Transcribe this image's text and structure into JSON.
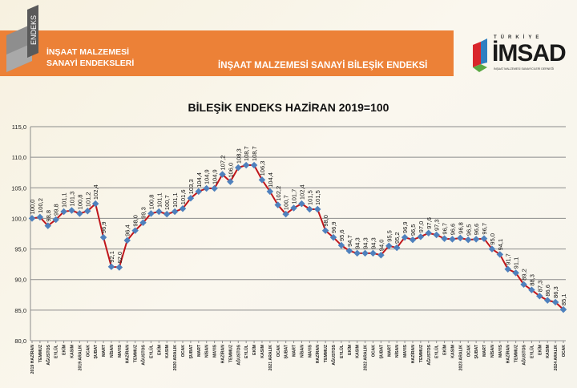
{
  "header": {
    "logo_text": "ENDEKS",
    "subtitle_line1": "İNŞAAT MALZEMESİ",
    "subtitle_line2": "SANAYİ ENDEKSLERİ",
    "band_title": "İNŞAAT MALZEMESİ SANAYİ BİLEŞİK ENDEKSİ",
    "brand_top": "TÜRKİYE",
    "brand_name": "İMSAD",
    "brand_small": "İNŞAAT MALZEMESİ SANAYİCİLERİ DERNEĞİ"
  },
  "colors": {
    "band": "#ec8137",
    "line": "#c0161b",
    "marker": "#4f81bd"
  },
  "chart_data": {
    "type": "line",
    "title": "BİLEŞİK ENDEKS HAZİRAN 2019=100",
    "ylim": [
      80,
      115
    ],
    "yticks": [
      "80,0",
      "85,0",
      "90,0",
      "95,0",
      "100,0",
      "105,0",
      "110,0",
      "115,0"
    ],
    "grid": true,
    "categories": [
      "2019 HAZİRAN",
      "TEMMUZ",
      "AĞUSTOS",
      "EYLÜL",
      "EKİM",
      "KASIM",
      "2019 ARALIK",
      "OCAK",
      "ŞUBAT",
      "MART",
      "NİSAN",
      "MAYIS",
      "HAZİRAN",
      "TEMMUZ",
      "AĞUSTOS",
      "EYLÜL",
      "EKİM",
      "KASIM",
      "2020 ARALIK",
      "OCAK",
      "ŞUBAT",
      "MART",
      "NİSAN",
      "MAYIS",
      "HAZİRAN",
      "TEMMUZ",
      "AĞUSTOS",
      "EYLÜL",
      "EKİM",
      "KASIM",
      "2021 ARALIK",
      "OCAK",
      "ŞUBAT",
      "MART",
      "NİSAN",
      "MAYIS",
      "HAZİRAN",
      "TEMMUZ",
      "AĞUSTOS",
      "EYLÜL",
      "EKİM",
      "KASIM",
      "2022 ARALIK",
      "OCAK",
      "ŞUBAT",
      "MART",
      "NİSAN",
      "MAYIS",
      "HAZİRAN",
      "TEMMUZ",
      "AĞUSTOS",
      "EYLÜL",
      "EKİM",
      "KASIM",
      "2023 ARALIK",
      "OCAK",
      "ŞUBAT",
      "MART",
      "NİSAN",
      "MAYIS",
      "HAZİRAN",
      "TEMMUZ",
      "AĞUSTOS",
      "EYLÜL",
      "EKİM",
      "KASIM",
      "2024 ARALIK",
      "OCAK"
    ],
    "values": [
      100.0,
      100.2,
      98.8,
      99.8,
      101.1,
      101.3,
      100.8,
      101.2,
      102.4,
      96.9,
      92.1,
      92.0,
      96.4,
      98.0,
      99.3,
      100.8,
      101.1,
      100.7,
      101.1,
      101.6,
      103.3,
      104.4,
      104.9,
      104.9,
      107.2,
      106.0,
      108.3,
      108.7,
      108.7,
      106.3,
      104.4,
      102.2,
      100.7,
      101.7,
      102.4,
      101.5,
      101.5,
      98.0,
      96.9,
      95.6,
      94.7,
      94.3,
      94.3,
      94.3,
      94.0,
      95.5,
      95.2,
      96.9,
      96.5,
      97.0,
      97.6,
      97.3,
      96.7,
      96.6,
      96.8,
      96.5,
      96.6,
      96.7,
      95.0,
      94.1,
      91.7,
      91.1,
      89.2,
      88.3,
      87.3,
      86.6,
      86.3,
      85.1
    ]
  }
}
